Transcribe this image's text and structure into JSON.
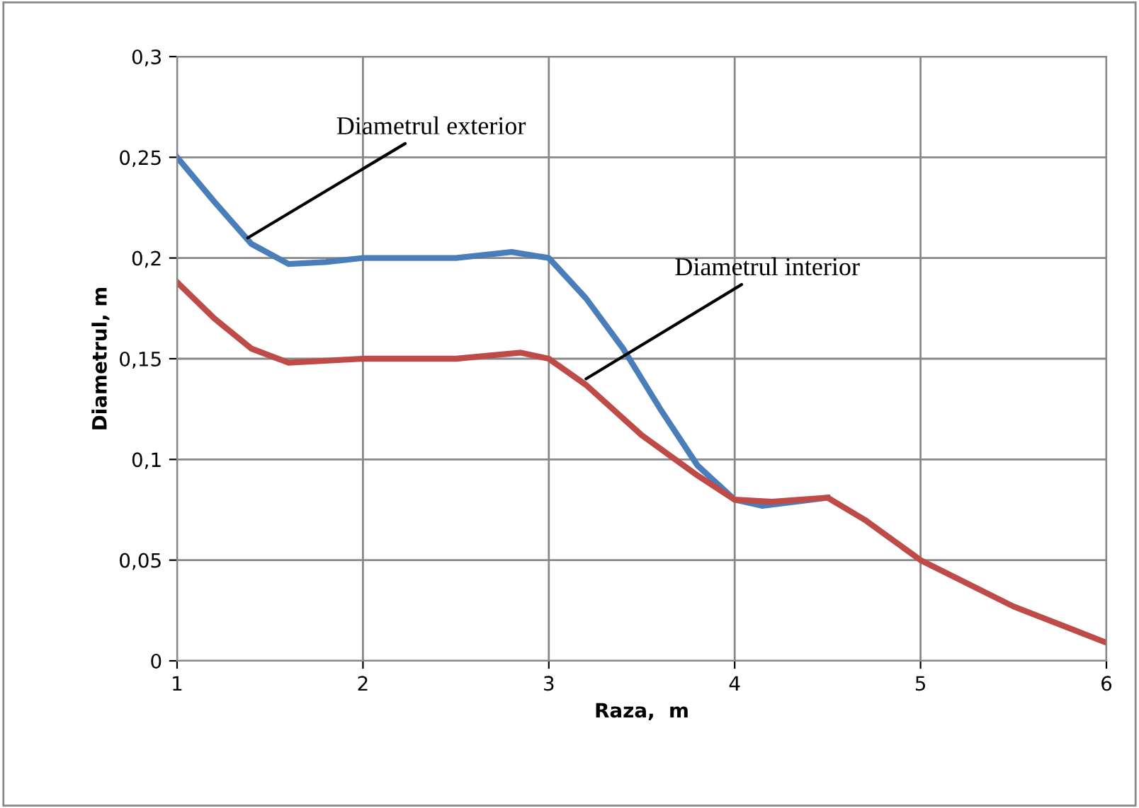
{
  "chart_data": {
    "type": "line",
    "xlabel": "Raza,  m",
    "ylabel": "Diametrul, m",
    "xlim": [
      1,
      6
    ],
    "xticks": [
      1,
      2,
      3,
      4,
      5,
      6
    ],
    "ylim": [
      0,
      0.3
    ],
    "yticks": [
      {
        "value": 0,
        "label": "0"
      },
      {
        "value": 0.05,
        "label": "0,05"
      },
      {
        "value": 0.1,
        "label": "0,1"
      },
      {
        "value": 0.15,
        "label": "0,15"
      },
      {
        "value": 0.2,
        "label": "0,2"
      },
      {
        "value": 0.25,
        "label": "0,25"
      },
      {
        "value": 0.3,
        "label": "0,3"
      }
    ],
    "grid": true,
    "legend": false,
    "marker": "none",
    "line_style": "solid",
    "series": [
      {
        "color": "#4a7ebb",
        "x": [
          1,
          1.2,
          1.4,
          1.6,
          1.8,
          2,
          2.5,
          2.8,
          3,
          3.2,
          3.4,
          3.6,
          3.8,
          4,
          4.15,
          4.5
        ],
        "values": [
          0.25,
          0.228,
          0.207,
          0.197,
          0.198,
          0.2,
          0.2,
          0.203,
          0.2,
          0.18,
          0.155,
          0.125,
          0.097,
          0.08,
          0.077,
          0.081
        ]
      },
      {
        "color": "#be4b48",
        "x": [
          1,
          1.2,
          1.4,
          1.6,
          2,
          2.5,
          2.85,
          3,
          3.2,
          3.5,
          3.8,
          4,
          4.2,
          4.5,
          4.7,
          5,
          5.5,
          6
        ],
        "values": [
          0.188,
          0.17,
          0.155,
          0.148,
          0.15,
          0.15,
          0.153,
          0.15,
          0.137,
          0.112,
          0.092,
          0.08,
          0.079,
          0.081,
          0.07,
          0.05,
          0.027,
          0.009
        ]
      }
    ],
    "annotations": [
      {
        "text": "Diametrul exterior",
        "x": 1.38,
        "y": 0.21
      },
      {
        "text": "Diametrul interior",
        "x": 3.2,
        "y": 0.14
      }
    ]
  }
}
